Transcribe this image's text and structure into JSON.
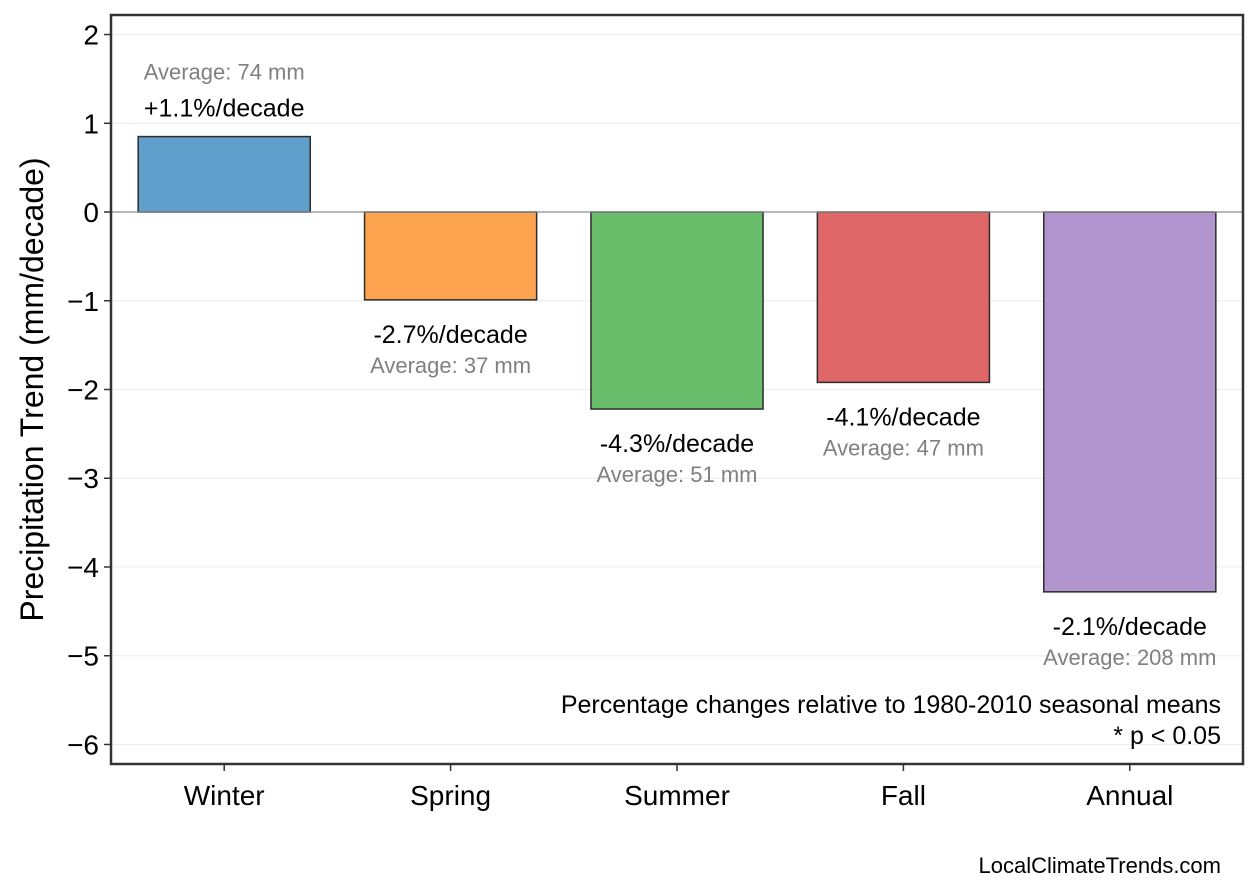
{
  "chart_data": {
    "type": "bar",
    "categories": [
      "Winter",
      "Spring",
      "Summer",
      "Fall",
      "Annual"
    ],
    "values": [
      0.85,
      -0.99,
      -2.22,
      -1.92,
      -4.28
    ],
    "colors": [
      "#5f9fcc",
      "#fda450",
      "#6abd6a",
      "#e06767",
      "#b294ce"
    ],
    "trend_labels": [
      "+1.1%/decade",
      "-2.7%/decade",
      "-4.3%/decade",
      "-4.1%/decade",
      "-2.1%/decade"
    ],
    "average_labels": [
      "Average: 74 mm",
      "Average: 37 mm",
      "Average: 51 mm",
      "Average: 47 mm",
      "Average: 208 mm"
    ],
    "ylabel": "Precipitation Trend (mm/decade)",
    "ylim": [
      -6.22,
      2.22
    ],
    "yticks": [
      2,
      1,
      0,
      -1,
      -2,
      -3,
      -4,
      -5,
      -6
    ],
    "ytick_labels": [
      "2",
      "1",
      "0",
      "−1",
      "−2",
      "−3",
      "−4",
      "−5",
      "−6"
    ],
    "grid": true,
    "annotation": [
      "Percentage changes relative to 1980-2010 seasonal means",
      "* p < 0.05"
    ],
    "source": "LocalClimateTrends.com"
  }
}
